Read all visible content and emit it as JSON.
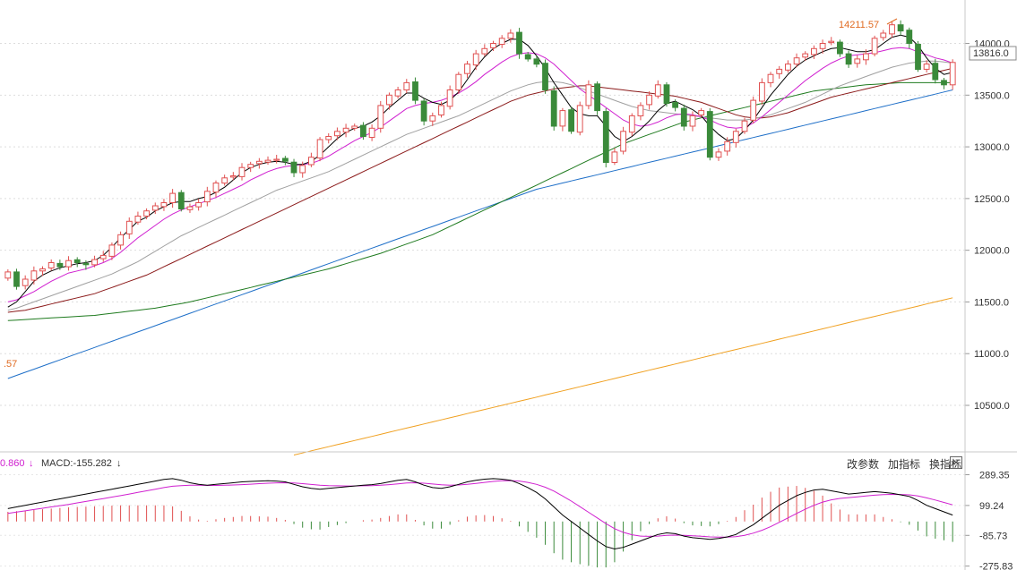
{
  "toolbar": {
    "change_params": "改参数",
    "add_indicator": "加指标",
    "switch_indicator": "换指标",
    "close": "×"
  },
  "macd_header": {
    "dea_text": "0.860",
    "macd_text": "MACD:-155.282"
  },
  "price_labels": {
    "high_label": "14211.57",
    "current_price": "13816.0",
    "left_partial": ".57"
  },
  "colors": {
    "up": "#e05050",
    "down": "#3a8a3a",
    "ma5": "#000000",
    "ma10": "#d020d0",
    "ma20": "#a0a0a0",
    "ma30": "#8b1a1a",
    "ma60": "#1e7a1e",
    "ma120": "#1e6fc8",
    "ma250": "#f0a020",
    "dif": "#000000",
    "dea": "#d020d0"
  },
  "chart_data": {
    "type": "candlestick",
    "y_ticks": [
      10500,
      11000,
      11500,
      12000,
      12500,
      13000,
      13500,
      14000
    ],
    "y_tick_labels": [
      "10500.0",
      "11000.0",
      "11500.0",
      "12000.0",
      "12500.0",
      "13000.0",
      "13500.0",
      "14000.0"
    ],
    "ylim": [
      10050,
      14420
    ],
    "close": [
      11790,
      11650,
      11720,
      11800,
      11820,
      11880,
      11840,
      11900,
      11880,
      11860,
      11910,
      11950,
      12050,
      12150,
      12280,
      12330,
      12380,
      12430,
      12460,
      12550,
      12400,
      12420,
      12460,
      12570,
      12650,
      12700,
      12720,
      12800,
      12830,
      12860,
      12870,
      12880,
      12860,
      12750,
      12820,
      12900,
      13070,
      13100,
      13150,
      13180,
      13200,
      13100,
      13180,
      13400,
      13500,
      13550,
      13620,
      13450,
      13250,
      13300,
      13400,
      13550,
      13700,
      13800,
      13900,
      13950,
      14000,
      14050,
      14100,
      13900,
      13850,
      13800,
      13550,
      13200,
      13350,
      13150,
      13400,
      13600,
      13350,
      12850,
      12950,
      13150,
      13300,
      13400,
      13500,
      13600,
      13420,
      13380,
      13200,
      13300,
      13350,
      12900,
      12950,
      13050,
      13150,
      13250,
      13450,
      13620,
      13700,
      13750,
      13800,
      13860,
      13900,
      13950,
      14000,
      14020,
      13900,
      13800,
      13850,
      13900,
      14050,
      14100,
      14180,
      14120,
      14000,
      13750,
      13800,
      13650,
      13600,
      13816
    ],
    "ma5": [
      11450,
      11500,
      11600,
      11700,
      11760,
      11800,
      11830,
      11850,
      11870,
      11880,
      11900,
      11950,
      12030,
      12120,
      12200,
      12280,
      12320,
      12380,
      12420,
      12460,
      12470,
      12470,
      12500,
      12520,
      12560,
      12610,
      12680,
      12750,
      12800,
      12830,
      12850,
      12860,
      12850,
      12830,
      12830,
      12860,
      12920,
      13000,
      13080,
      13140,
      13180,
      13200,
      13240,
      13300,
      13380,
      13450,
      13520,
      13520,
      13470,
      13430,
      13410,
      13450,
      13530,
      13650,
      13770,
      13870,
      13950,
      14000,
      14040,
      14040,
      13980,
      13880,
      13760,
      13620,
      13500,
      13380,
      13320,
      13300,
      13300,
      13200,
      13100,
      13050,
      13100,
      13170,
      13250,
      13350,
      13420,
      13440,
      13400,
      13360,
      13300,
      13200,
      13120,
      13060,
      13080,
      13160,
      13260,
      13380,
      13500,
      13600,
      13700,
      13780,
      13840,
      13880,
      13920,
      13950,
      13960,
      13940,
      13920,
      13920,
      13940,
      14000,
      14060,
      14080,
      14060,
      13980,
      13860,
      13760,
      13700,
      13720
    ],
    "ma10": [
      11500,
      11520,
      11560,
      11600,
      11650,
      11700,
      11740,
      11780,
      11800,
      11820,
      11850,
      11880,
      11920,
      11980,
      12050,
      12120,
      12180,
      12240,
      12300,
      12350,
      12390,
      12420,
      12450,
      12480,
      12510,
      12550,
      12590,
      12630,
      12680,
      12720,
      12760,
      12790,
      12810,
      12820,
      12830,
      12840,
      12870,
      12910,
      12960,
      13010,
      13060,
      13100,
      13140,
      13190,
      13250,
      13310,
      13370,
      13400,
      13420,
      13430,
      13450,
      13480,
      13520,
      13570,
      13630,
      13700,
      13760,
      13820,
      13870,
      13900,
      13910,
      13900,
      13860,
      13800,
      13720,
      13640,
      13560,
      13500,
      13440,
      13380,
      13320,
      13260,
      13220,
      13200,
      13210,
      13240,
      13280,
      13310,
      13320,
      13310,
      13290,
      13260,
      13220,
      13190,
      13180,
      13190,
      13230,
      13290,
      13360,
      13430,
      13500,
      13570,
      13640,
      13700,
      13760,
      13810,
      13850,
      13880,
      13890,
      13900,
      13910,
      13930,
      13950,
      13960,
      13950,
      13920,
      13890,
      13860,
      13840,
      13810
    ],
    "ma20": [
      11420,
      11440,
      11470,
      11500,
      11530,
      11560,
      11590,
      11620,
      11650,
      11680,
      11710,
      11740,
      11770,
      11810,
      11850,
      11890,
      11940,
      11990,
      12040,
      12090,
      12140,
      12180,
      12220,
      12260,
      12300,
      12340,
      12380,
      12420,
      12460,
      12500,
      12540,
      12580,
      12610,
      12640,
      12670,
      12700,
      12730,
      12760,
      12800,
      12840,
      12880,
      12920,
      12960,
      13000,
      13040,
      13080,
      13120,
      13150,
      13180,
      13210,
      13240,
      13270,
      13300,
      13340,
      13380,
      13420,
      13460,
      13500,
      13540,
      13570,
      13600,
      13620,
      13630,
      13630,
      13620,
      13600,
      13570,
      13540,
      13510,
      13480,
      13450,
      13420,
      13390,
      13370,
      13350,
      13340,
      13330,
      13320,
      13310,
      13300,
      13290,
      13280,
      13270,
      13260,
      13260,
      13260,
      13270,
      13290,
      13310,
      13340,
      13370,
      13400,
      13430,
      13470,
      13510,
      13550,
      13590,
      13620,
      13650,
      13680,
      13710,
      13740,
      13770,
      13790,
      13810,
      13820,
      13830,
      13830,
      13820,
      13810
    ],
    "ma30": [
      11400,
      11410,
      11420,
      11440,
      11460,
      11480,
      11500,
      11520,
      11540,
      11560,
      11580,
      11610,
      11640,
      11670,
      11700,
      11730,
      11760,
      11800,
      11840,
      11880,
      11920,
      11960,
      12000,
      12040,
      12080,
      12120,
      12160,
      12200,
      12240,
      12280,
      12320,
      12360,
      12400,
      12440,
      12480,
      12520,
      12560,
      12600,
      12640,
      12680,
      12720,
      12760,
      12800,
      12840,
      12880,
      12920,
      12960,
      13000,
      13040,
      13080,
      13120,
      13160,
      13200,
      13240,
      13280,
      13320,
      13360,
      13400,
      13440,
      13470,
      13500,
      13520,
      13540,
      13560,
      13570,
      13580,
      13590,
      13590,
      13580,
      13570,
      13560,
      13550,
      13540,
      13530,
      13520,
      13510,
      13500,
      13490,
      13470,
      13450,
      13430,
      13400,
      13370,
      13340,
      13310,
      13290,
      13280,
      13280,
      13290,
      13310,
      13330,
      13360,
      13390,
      13420,
      13450,
      13480,
      13500,
      13520,
      13540,
      13560,
      13580,
      13600,
      13620,
      13640,
      13660,
      13680,
      13700,
      13720,
      13740,
      13760
    ],
    "ma60": [
      11320,
      11325,
      11330,
      11335,
      11340,
      11345,
      11350,
      11355,
      11360,
      11365,
      11370,
      11380,
      11390,
      11400,
      11410,
      11420,
      11430,
      11440,
      11455,
      11470,
      11485,
      11500,
      11520,
      11540,
      11560,
      11580,
      11600,
      11620,
      11640,
      11660,
      11680,
      11700,
      11720,
      11740,
      11760,
      11780,
      11800,
      11820,
      11845,
      11870,
      11895,
      11920,
      11945,
      11970,
      12000,
      12030,
      12060,
      12090,
      12120,
      12150,
      12190,
      12230,
      12270,
      12310,
      12350,
      12390,
      12430,
      12470,
      12510,
      12550,
      12590,
      12630,
      12670,
      12710,
      12750,
      12790,
      12830,
      12870,
      12910,
      12950,
      12990,
      13030,
      13060,
      13090,
      13120,
      13150,
      13180,
      13210,
      13240,
      13260,
      13280,
      13300,
      13320,
      13340,
      13360,
      13380,
      13400,
      13420,
      13440,
      13460,
      13480,
      13500,
      13520,
      13540,
      13550,
      13560,
      13570,
      13580,
      13590,
      13600,
      13605,
      13610,
      13615,
      13620,
      13620,
      13620,
      13620,
      13620,
      13620,
      13620
    ],
    "ma120": [
      10760,
      10790,
      10820,
      10850,
      10880,
      10910,
      10940,
      10970,
      11000,
      11030,
      11060,
      11090,
      11120,
      11150,
      11180,
      11210,
      11240,
      11270,
      11300,
      11330,
      11360,
      11390,
      11420,
      11450,
      11480,
      11510,
      11540,
      11570,
      11600,
      11630,
      11660,
      11690,
      11720,
      11750,
      11780,
      11810,
      11840,
      11870,
      11900,
      11930,
      11960,
      11990,
      12020,
      12050,
      12080,
      12110,
      12140,
      12170,
      12200,
      12230,
      12260,
      12290,
      12320,
      12350,
      12380,
      12410,
      12440,
      12470,
      12500,
      12530,
      12560,
      12590,
      12610,
      12630,
      12650,
      12670,
      12690,
      12710,
      12730,
      12750,
      12770,
      12790,
      12810,
      12830,
      12850,
      12870,
      12890,
      12910,
      12930,
      12950,
      12970,
      12990,
      13010,
      13030,
      13050,
      13070,
      13090,
      13110,
      13130,
      13150,
      13170,
      13190,
      13210,
      13230,
      13250,
      13270,
      13290,
      13310,
      13330,
      13350,
      13370,
      13390,
      13410,
      13430,
      13450,
      13470,
      13490,
      13510,
      13530,
      13550
    ],
    "ma250_start_index": 33,
    "ma250": [
      10020,
      10040,
      10060,
      10080,
      10100,
      10120,
      10140,
      10160,
      10180,
      10200,
      10220,
      10240,
      10260,
      10280,
      10300,
      10320,
      10340,
      10360,
      10380,
      10400,
      10420,
      10440,
      10460,
      10480,
      10500,
      10520,
      10540,
      10560,
      10580,
      10600,
      10620,
      10640,
      10660,
      10680,
      10700,
      10720,
      10740,
      10760,
      10780,
      10800,
      10820,
      10840,
      10860,
      10880,
      10900,
      10920,
      10940,
      10960,
      10980,
      11000,
      11020,
      11040,
      11060,
      11080,
      11100,
      11120,
      11140,
      11160,
      11180,
      11200,
      11220,
      11240,
      11260,
      11280,
      11300,
      11320,
      11340,
      11360,
      11380,
      11400,
      11420,
      11440,
      11460,
      11480,
      11500,
      11520,
      11540
    ],
    "macd": {
      "y_ticks": [
        289.35,
        99.24,
        -85.73,
        -275.83
      ],
      "y_tick_labels": [
        "289.35",
        "99.24",
        "-85.73",
        "-275.83"
      ],
      "ylim": [
        -300,
        320
      ],
      "dif": [
        80,
        90,
        100,
        110,
        120,
        130,
        140,
        150,
        160,
        170,
        180,
        190,
        200,
        210,
        220,
        230,
        240,
        250,
        260,
        265,
        255,
        240,
        230,
        225,
        230,
        235,
        240,
        245,
        248,
        250,
        252,
        250,
        245,
        230,
        215,
        205,
        200,
        205,
        210,
        215,
        220,
        225,
        228,
        235,
        245,
        255,
        260,
        245,
        225,
        210,
        205,
        215,
        230,
        245,
        255,
        262,
        265,
        262,
        255,
        235,
        210,
        180,
        140,
        90,
        40,
        0,
        -40,
        -80,
        -120,
        -155,
        -170,
        -160,
        -140,
        -120,
        -100,
        -80,
        -70,
        -75,
        -90,
        -100,
        -105,
        -110,
        -105,
        -95,
        -80,
        -50,
        -20,
        20,
        60,
        100,
        130,
        160,
        180,
        195,
        200,
        190,
        180,
        170,
        175,
        180,
        185,
        180,
        175,
        165,
        155,
        130,
        100,
        80,
        60,
        40
      ],
      "dea": [
        50,
        58,
        66,
        74,
        82,
        90,
        98,
        106,
        115,
        124,
        133,
        142,
        151,
        160,
        170,
        180,
        190,
        200,
        210,
        218,
        222,
        224,
        224,
        223,
        223,
        224,
        226,
        228,
        231,
        234,
        237,
        239,
        240,
        238,
        234,
        229,
        225,
        222,
        221,
        220,
        220,
        221,
        222,
        224,
        228,
        233,
        238,
        240,
        237,
        232,
        227,
        225,
        226,
        230,
        236,
        242,
        248,
        252,
        253,
        250,
        242,
        230,
        212,
        188,
        158,
        126,
        92,
        57,
        22,
        -13,
        -44,
        -67,
        -82,
        -90,
        -92,
        -90,
        -86,
        -84,
        -85,
        -88,
        -91,
        -95,
        -97,
        -97,
        -94,
        -85,
        -72,
        -54,
        -32,
        -5,
        22,
        50,
        76,
        100,
        120,
        134,
        143,
        148,
        153,
        158,
        163,
        166,
        168,
        167,
        165,
        158,
        146,
        133,
        118,
        103
      ]
    }
  }
}
